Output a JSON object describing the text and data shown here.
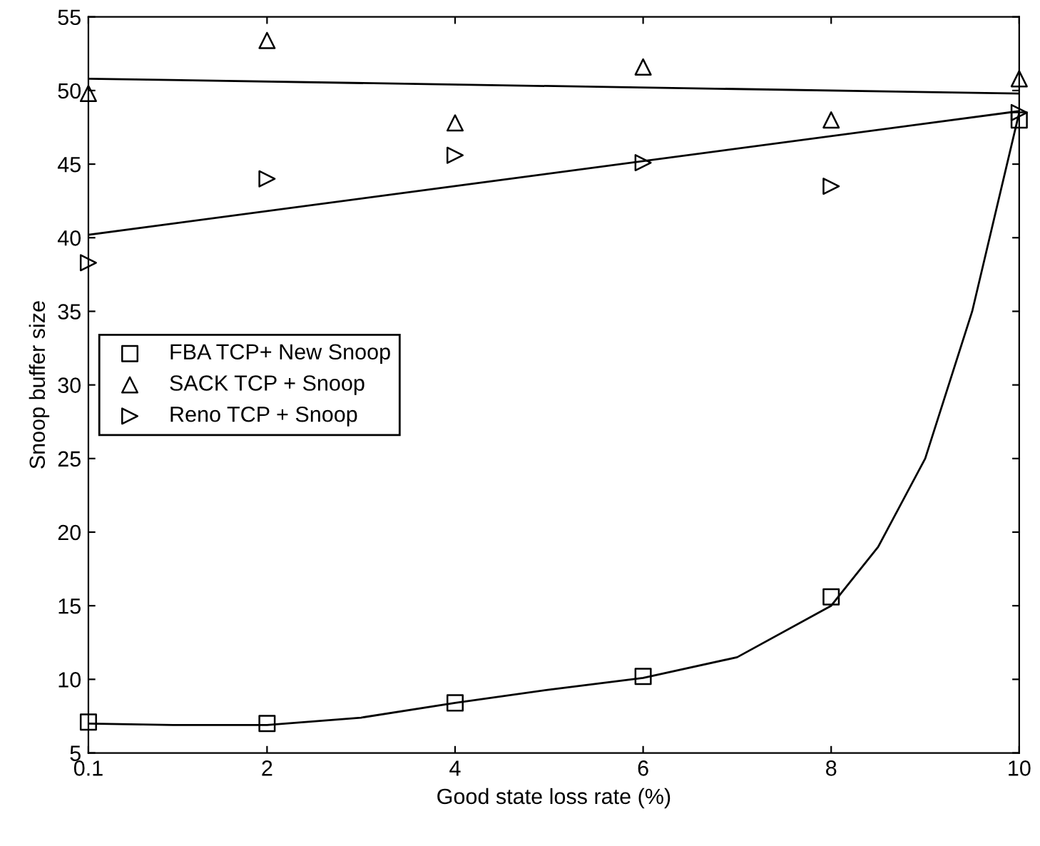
{
  "chart_data": {
    "type": "scatter",
    "xlabel": "Good state loss rate (%)",
    "ylabel": "Snoop buffer size",
    "xlim": [
      0.1,
      10
    ],
    "xticks": [
      0.1,
      2,
      4,
      6,
      8,
      10
    ],
    "ylim": [
      5,
      55
    ],
    "yticks": [
      5,
      10,
      15,
      20,
      25,
      30,
      35,
      40,
      45,
      50,
      55
    ],
    "grid": false,
    "legend": "center left",
    "series": [
      {
        "name": "FBA TCP+ New Snoop",
        "color": "#000000",
        "marker": "square",
        "x": [
          0.1,
          2,
          4,
          6,
          8,
          10
        ],
        "values": [
          7.1,
          7.0,
          8.4,
          10.2,
          15.6,
          48
        ]
      },
      {
        "name": "SACK TCP + Snoop",
        "color": "#000000",
        "marker": "triangle",
        "x": [
          0.1,
          2,
          4,
          6,
          8,
          10
        ],
        "values": [
          49.8,
          53.4,
          47.8,
          51.6,
          48.0,
          50.8
        ]
      },
      {
        "name": "Reno TCP + Snoop",
        "color": "#000000",
        "marker": "triangle_right",
        "x": [
          0.1,
          2,
          4,
          6,
          8,
          10
        ],
        "values": [
          38.3,
          44.0,
          45.6,
          45.1,
          43.5,
          48.5
        ]
      },
      {
        "type": "line",
        "color": "#000000",
        "marker": "none",
        "line_style": "solid",
        "x": [
          0.1,
          1,
          2,
          3,
          4,
          5,
          6,
          7,
          8,
          8.5,
          9,
          9.5,
          10
        ],
        "values": [
          7.0,
          6.9,
          6.9,
          7.4,
          8.4,
          9.3,
          10.1,
          11.5,
          15.0,
          19,
          25,
          35,
          48.5
        ]
      },
      {
        "type": "line",
        "color": "#000000",
        "marker": "none",
        "line_style": "solid",
        "x": [
          0.1,
          10
        ],
        "values": [
          50.8,
          49.8
        ]
      },
      {
        "type": "line",
        "color": "#000000",
        "marker": "none",
        "line_style": "solid",
        "x": [
          0.1,
          10
        ],
        "values": [
          40.2,
          48.6
        ]
      }
    ]
  }
}
